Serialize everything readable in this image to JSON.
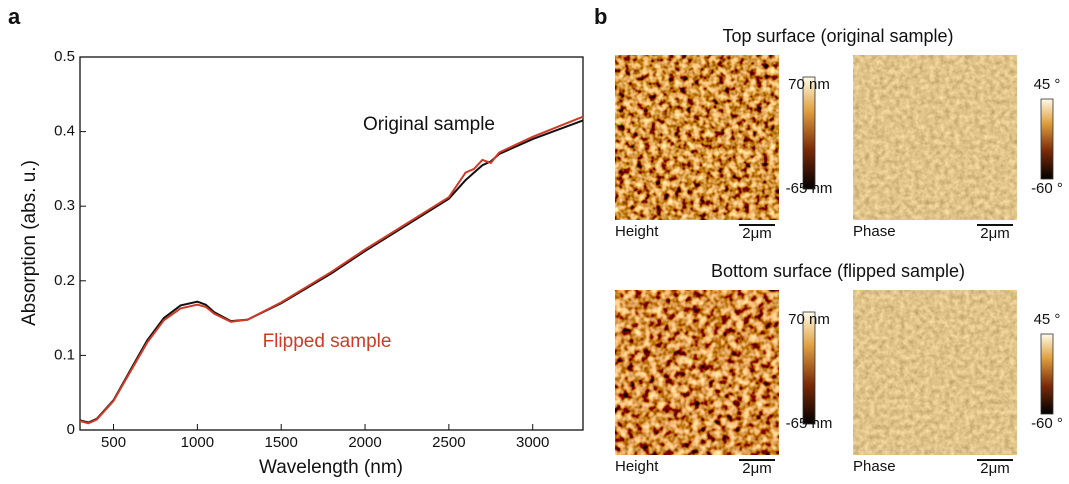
{
  "panel_labels": [
    "a",
    "b"
  ],
  "chart_data": {
    "type": "line",
    "x_label": "Wavelength (nm)",
    "y_label": "Absorption (abs. u.)",
    "x": [
      300,
      350,
      400,
      500,
      600,
      700,
      800,
      900,
      1000,
      1050,
      1100,
      1200,
      1300,
      1500,
      1800,
      2000,
      2500,
      2600,
      2650,
      2700,
      2750,
      2800,
      3000,
      3300
    ],
    "series": [
      {
        "name": "Original sample",
        "color": "#111111",
        "values": [
          0.013,
          0.01,
          0.015,
          0.04,
          0.08,
          0.12,
          0.15,
          0.167,
          0.172,
          0.168,
          0.158,
          0.146,
          0.148,
          0.17,
          0.21,
          0.24,
          0.31,
          0.335,
          0.345,
          0.355,
          0.36,
          0.37,
          0.39,
          0.415
        ]
      },
      {
        "name": "Flipped sample",
        "color": "#d03a27",
        "values": [
          0.012,
          0.009,
          0.014,
          0.039,
          0.078,
          0.117,
          0.147,
          0.163,
          0.168,
          0.165,
          0.156,
          0.145,
          0.148,
          0.171,
          0.212,
          0.242,
          0.312,
          0.345,
          0.35,
          0.362,
          0.358,
          0.372,
          0.393,
          0.42
        ]
      }
    ],
    "xlim": [
      300,
      3300
    ],
    "xticks": [
      500,
      1000,
      1500,
      2000,
      2500,
      3000
    ],
    "ylim": [
      0,
      0.5
    ],
    "yticks": [
      0,
      0.1,
      0.2,
      0.3,
      0.4,
      0.5
    ]
  },
  "afm": {
    "rows": [
      {
        "title": "Top surface (original sample)",
        "images": [
          {
            "label": "Height",
            "scale_bar": "2μm",
            "colorbar_max": "70 nm",
            "colorbar_min": "-65 nm"
          },
          {
            "label": "Phase",
            "scale_bar": "2μm",
            "colorbar_max": "45 °",
            "colorbar_min": "-60 °"
          }
        ]
      },
      {
        "title": "Bottom surface (flipped sample)",
        "images": [
          {
            "label": "Height",
            "scale_bar": "2μm",
            "colorbar_max": "70 nm",
            "colorbar_min": "-65 nm"
          },
          {
            "label": "Phase",
            "scale_bar": "2μm",
            "colorbar_max": "45 °",
            "colorbar_min": "-60 °"
          }
        ]
      }
    ]
  }
}
